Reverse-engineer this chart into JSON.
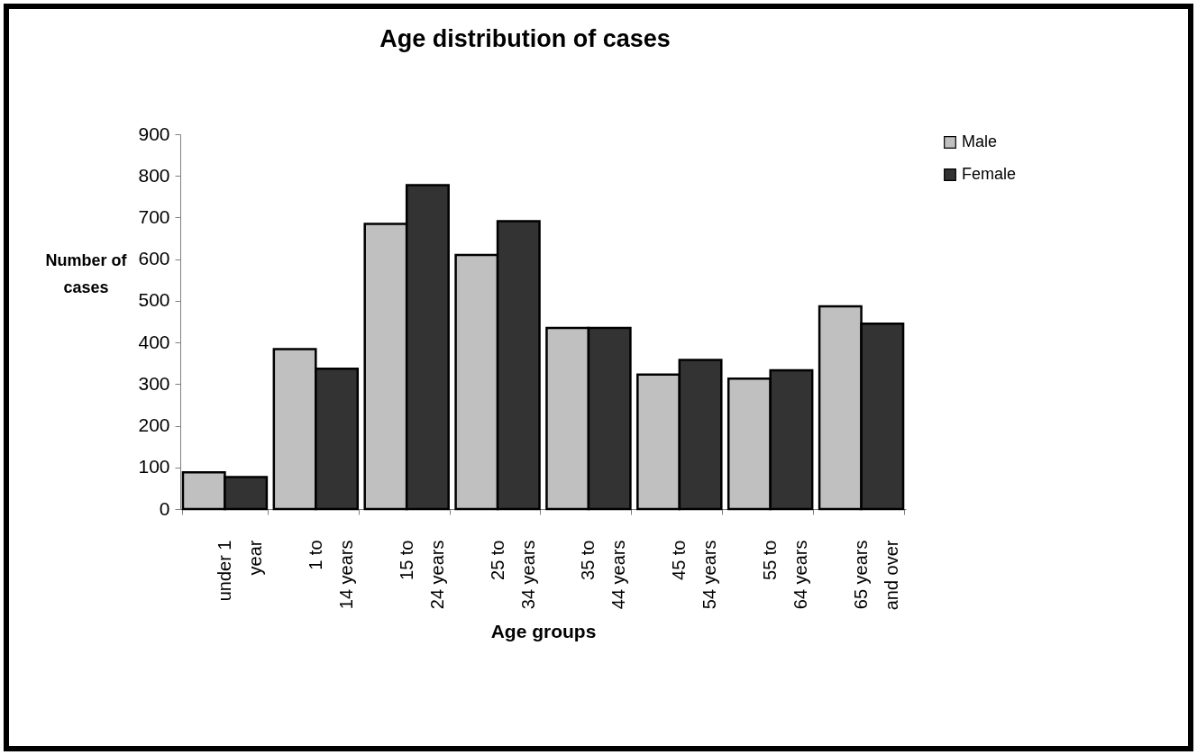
{
  "chart_data": {
    "type": "bar",
    "title": "Age distribution of cases",
    "xlabel": "Age groups",
    "ylabel": "Number of cases",
    "categories": [
      "under 1 year",
      "1 to 14 years",
      "15 to 24 years",
      "25 to 34 years",
      "35 to 44 years",
      "45 to 54 years",
      "55 to 64 years",
      "65 years and over"
    ],
    "series": [
      {
        "name": "Male",
        "color": "#c0c0c0",
        "values": [
          88,
          384,
          685,
          610,
          435,
          323,
          313,
          487
        ]
      },
      {
        "name": "Female",
        "color": "#333333",
        "values": [
          77,
          337,
          778,
          691,
          435,
          358,
          333,
          445
        ]
      }
    ],
    "ylim": [
      0,
      900
    ],
    "yticks": [
      0,
      100,
      200,
      300,
      400,
      500,
      600,
      700,
      800,
      900
    ],
    "grid": false,
    "legend": "top right"
  }
}
